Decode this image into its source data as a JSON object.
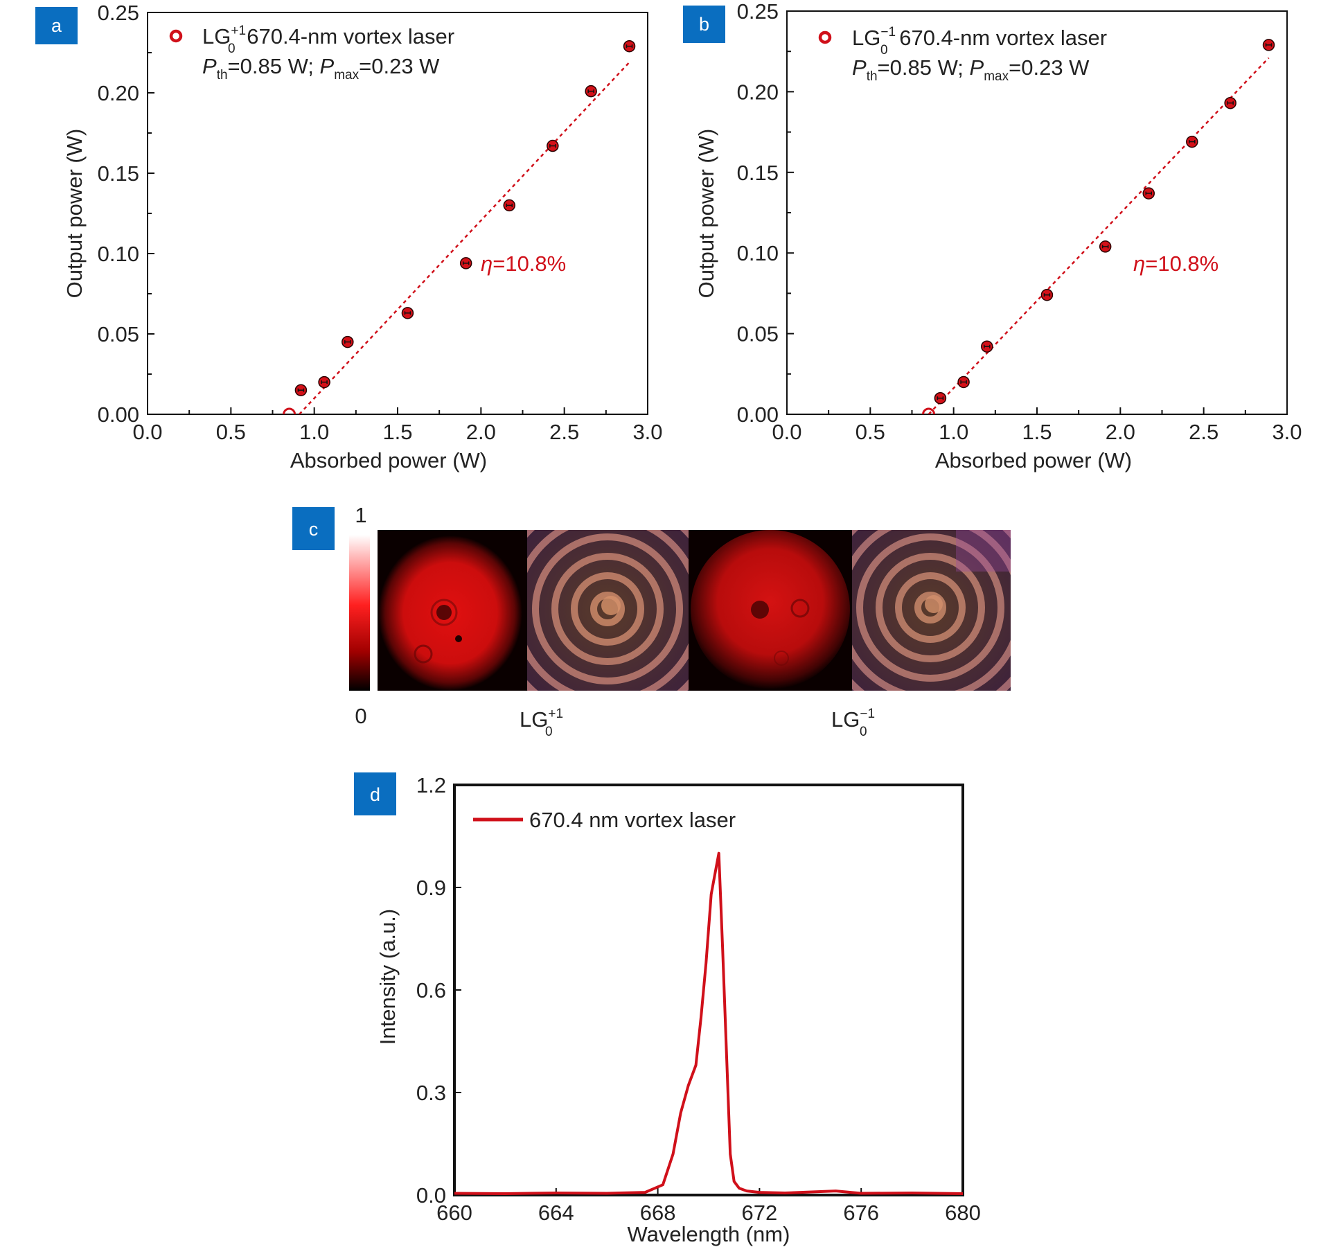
{
  "colors": {
    "badge": "#0a6ec0",
    "series": "#d0101a",
    "axis": "#111111",
    "marker_fill": "#d41018",
    "errorbar": "#111111"
  },
  "panels": {
    "a": {
      "badge": "a"
    },
    "b": {
      "badge": "b"
    },
    "c": {
      "badge": "c",
      "colorbar_max": "1",
      "colorbar_min": "0",
      "label_plus": {
        "base": "LG",
        "sub": "0",
        "sup": "+1"
      },
      "label_minus": {
        "base": "LG",
        "sub": "0",
        "sup": "−1"
      },
      "images": [
        "intensity-profile-plus",
        "interference-pattern-plus",
        "intensity-profile-minus",
        "interference-pattern-minus"
      ]
    },
    "d": {
      "badge": "d"
    }
  },
  "chart_data": [
    {
      "id": "a",
      "type": "scatter",
      "xlabel": "Absorbed power (W)",
      "ylabel": "Output power (W)",
      "xlim": [
        0,
        3.0
      ],
      "ylim": [
        0,
        0.25
      ],
      "xticks": [
        "0.0",
        "0.5",
        "1.0",
        "1.5",
        "2.0",
        "2.5",
        "3.0"
      ],
      "yticks": [
        "0.00",
        "0.05",
        "0.10",
        "0.15",
        "0.20",
        "0.25"
      ],
      "legend": {
        "label_base": "LG",
        "label_sub": "0",
        "label_sup": "+1",
        "label_rest": " 670.4-nm vortex laser",
        "line2": {
          "p1": "P",
          "p1_sub": "th",
          "p1_val": "=0.85 W; ",
          "p2": "P",
          "p2_sub": "max",
          "p2_val": "=0.23 W"
        },
        "position": "top-left"
      },
      "annotation": {
        "symbol": "η",
        "text": "=10.8%"
      },
      "series": [
        {
          "x": [
            0.85,
            0.92,
            1.06,
            1.2,
            1.56,
            1.91,
            2.17,
            2.43,
            2.66,
            2.89
          ],
          "values": [
            0.0,
            0.015,
            0.02,
            0.045,
            0.063,
            0.094,
            0.13,
            0.167,
            0.201,
            0.229
          ]
        }
      ],
      "fit": {
        "x": [
          0.91,
          2.89
        ],
        "values": [
          0.0,
          0.219
        ]
      }
    },
    {
      "id": "b",
      "type": "scatter",
      "xlabel": "Absorbed power (W)",
      "ylabel": "Output power (W)",
      "xlim": [
        0,
        3.0
      ],
      "ylim": [
        0,
        0.25
      ],
      "xticks": [
        "0.0",
        "0.5",
        "1.0",
        "1.5",
        "2.0",
        "2.5",
        "3.0"
      ],
      "yticks": [
        "0.00",
        "0.05",
        "0.10",
        "0.15",
        "0.20",
        "0.25"
      ],
      "legend": {
        "label_base": "LG",
        "label_sub": "0",
        "label_sup": "−1",
        "label_rest": " 670.4-nm vortex laser",
        "line2": {
          "p1": "P",
          "p1_sub": "th",
          "p1_val": "=0.85 W; ",
          "p2": "P",
          "p2_sub": "max",
          "p2_val": "=0.23 W"
        },
        "position": "top-left"
      },
      "annotation": {
        "symbol": "η",
        "text": "=10.8%"
      },
      "series": [
        {
          "x": [
            0.85,
            0.92,
            1.06,
            1.2,
            1.56,
            1.91,
            2.17,
            2.43,
            2.66,
            2.89
          ],
          "values": [
            0.0,
            0.01,
            0.02,
            0.042,
            0.074,
            0.104,
            0.137,
            0.169,
            0.193,
            0.229
          ]
        }
      ],
      "fit": {
        "x": [
          0.85,
          2.89
        ],
        "values": [
          0.0,
          0.221
        ]
      }
    },
    {
      "id": "d",
      "type": "line",
      "xlabel": "Wavelength (nm)",
      "ylabel": "Intensity (a.u.)",
      "xlim": [
        660,
        680
      ],
      "ylim": [
        0,
        1.2
      ],
      "xticks": [
        "660",
        "664",
        "668",
        "672",
        "676",
        "680"
      ],
      "yticks": [
        "0.0",
        "0.3",
        "0.6",
        "0.9",
        "1.2"
      ],
      "legend": {
        "position": "top-left"
      },
      "series": [
        {
          "name": "670.4 nm vortex laser",
          "x": [
            660,
            662,
            664,
            666,
            667.5,
            668.2,
            668.6,
            668.9,
            669.2,
            669.5,
            669.7,
            669.9,
            670.1,
            670.3,
            670.4,
            670.55,
            670.7,
            670.85,
            671.0,
            671.2,
            671.5,
            672,
            673,
            675,
            676,
            678,
            680
          ],
          "values": [
            0.005,
            0.004,
            0.006,
            0.005,
            0.008,
            0.03,
            0.12,
            0.24,
            0.32,
            0.38,
            0.52,
            0.68,
            0.88,
            0.96,
            1.0,
            0.72,
            0.42,
            0.12,
            0.04,
            0.02,
            0.012,
            0.008,
            0.006,
            0.012,
            0.005,
            0.006,
            0.004
          ]
        }
      ]
    }
  ]
}
